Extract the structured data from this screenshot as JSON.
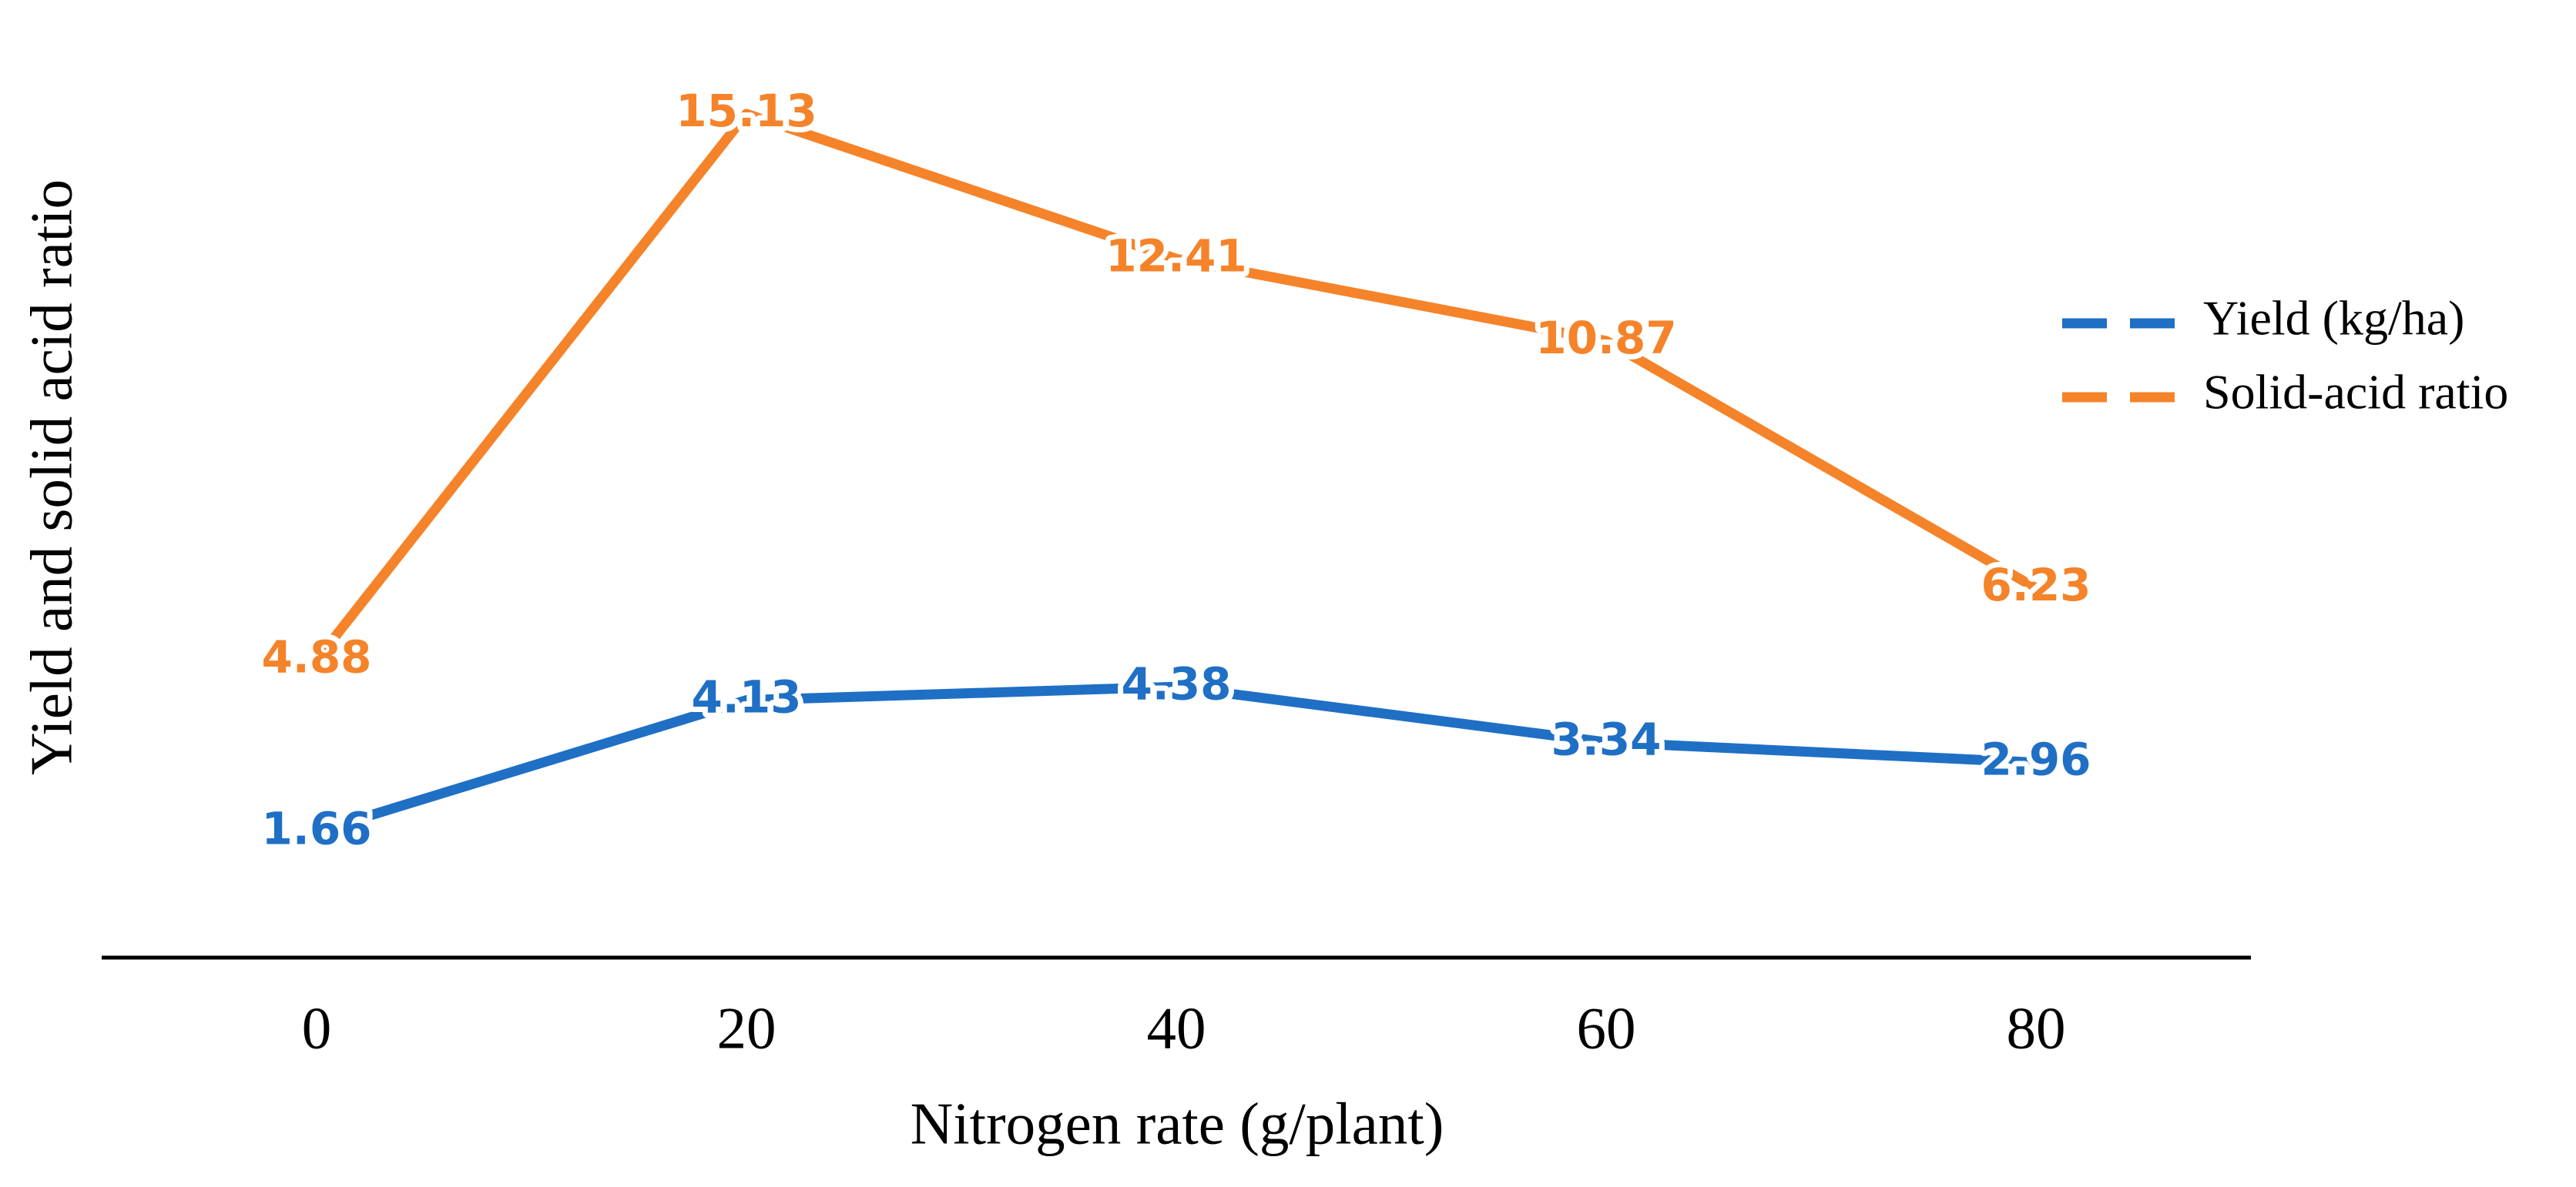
{
  "chart_data": {
    "type": "line",
    "x_label": "Nitrogen rate (g/plant)",
    "y_label": "Yield and solid acid ratio",
    "x": [
      0,
      20,
      40,
      60,
      80
    ],
    "xlim": [
      -10,
      90
    ],
    "xticks": [
      0,
      20,
      40,
      60,
      80
    ],
    "ylim": [
      -0.7,
      16.5
    ],
    "series": [
      {
        "name": "Yield (kg/ha)",
        "color": "#1f6fc5",
        "values": [
          1.66,
          4.13,
          4.38,
          3.34,
          2.96
        ]
      },
      {
        "name": "Solid-acid ratio",
        "color": "#f5832a",
        "values": [
          4.88,
          15.13,
          12.41,
          10.87,
          6.23
        ]
      }
    ],
    "legend": "right",
    "grid": false
  }
}
